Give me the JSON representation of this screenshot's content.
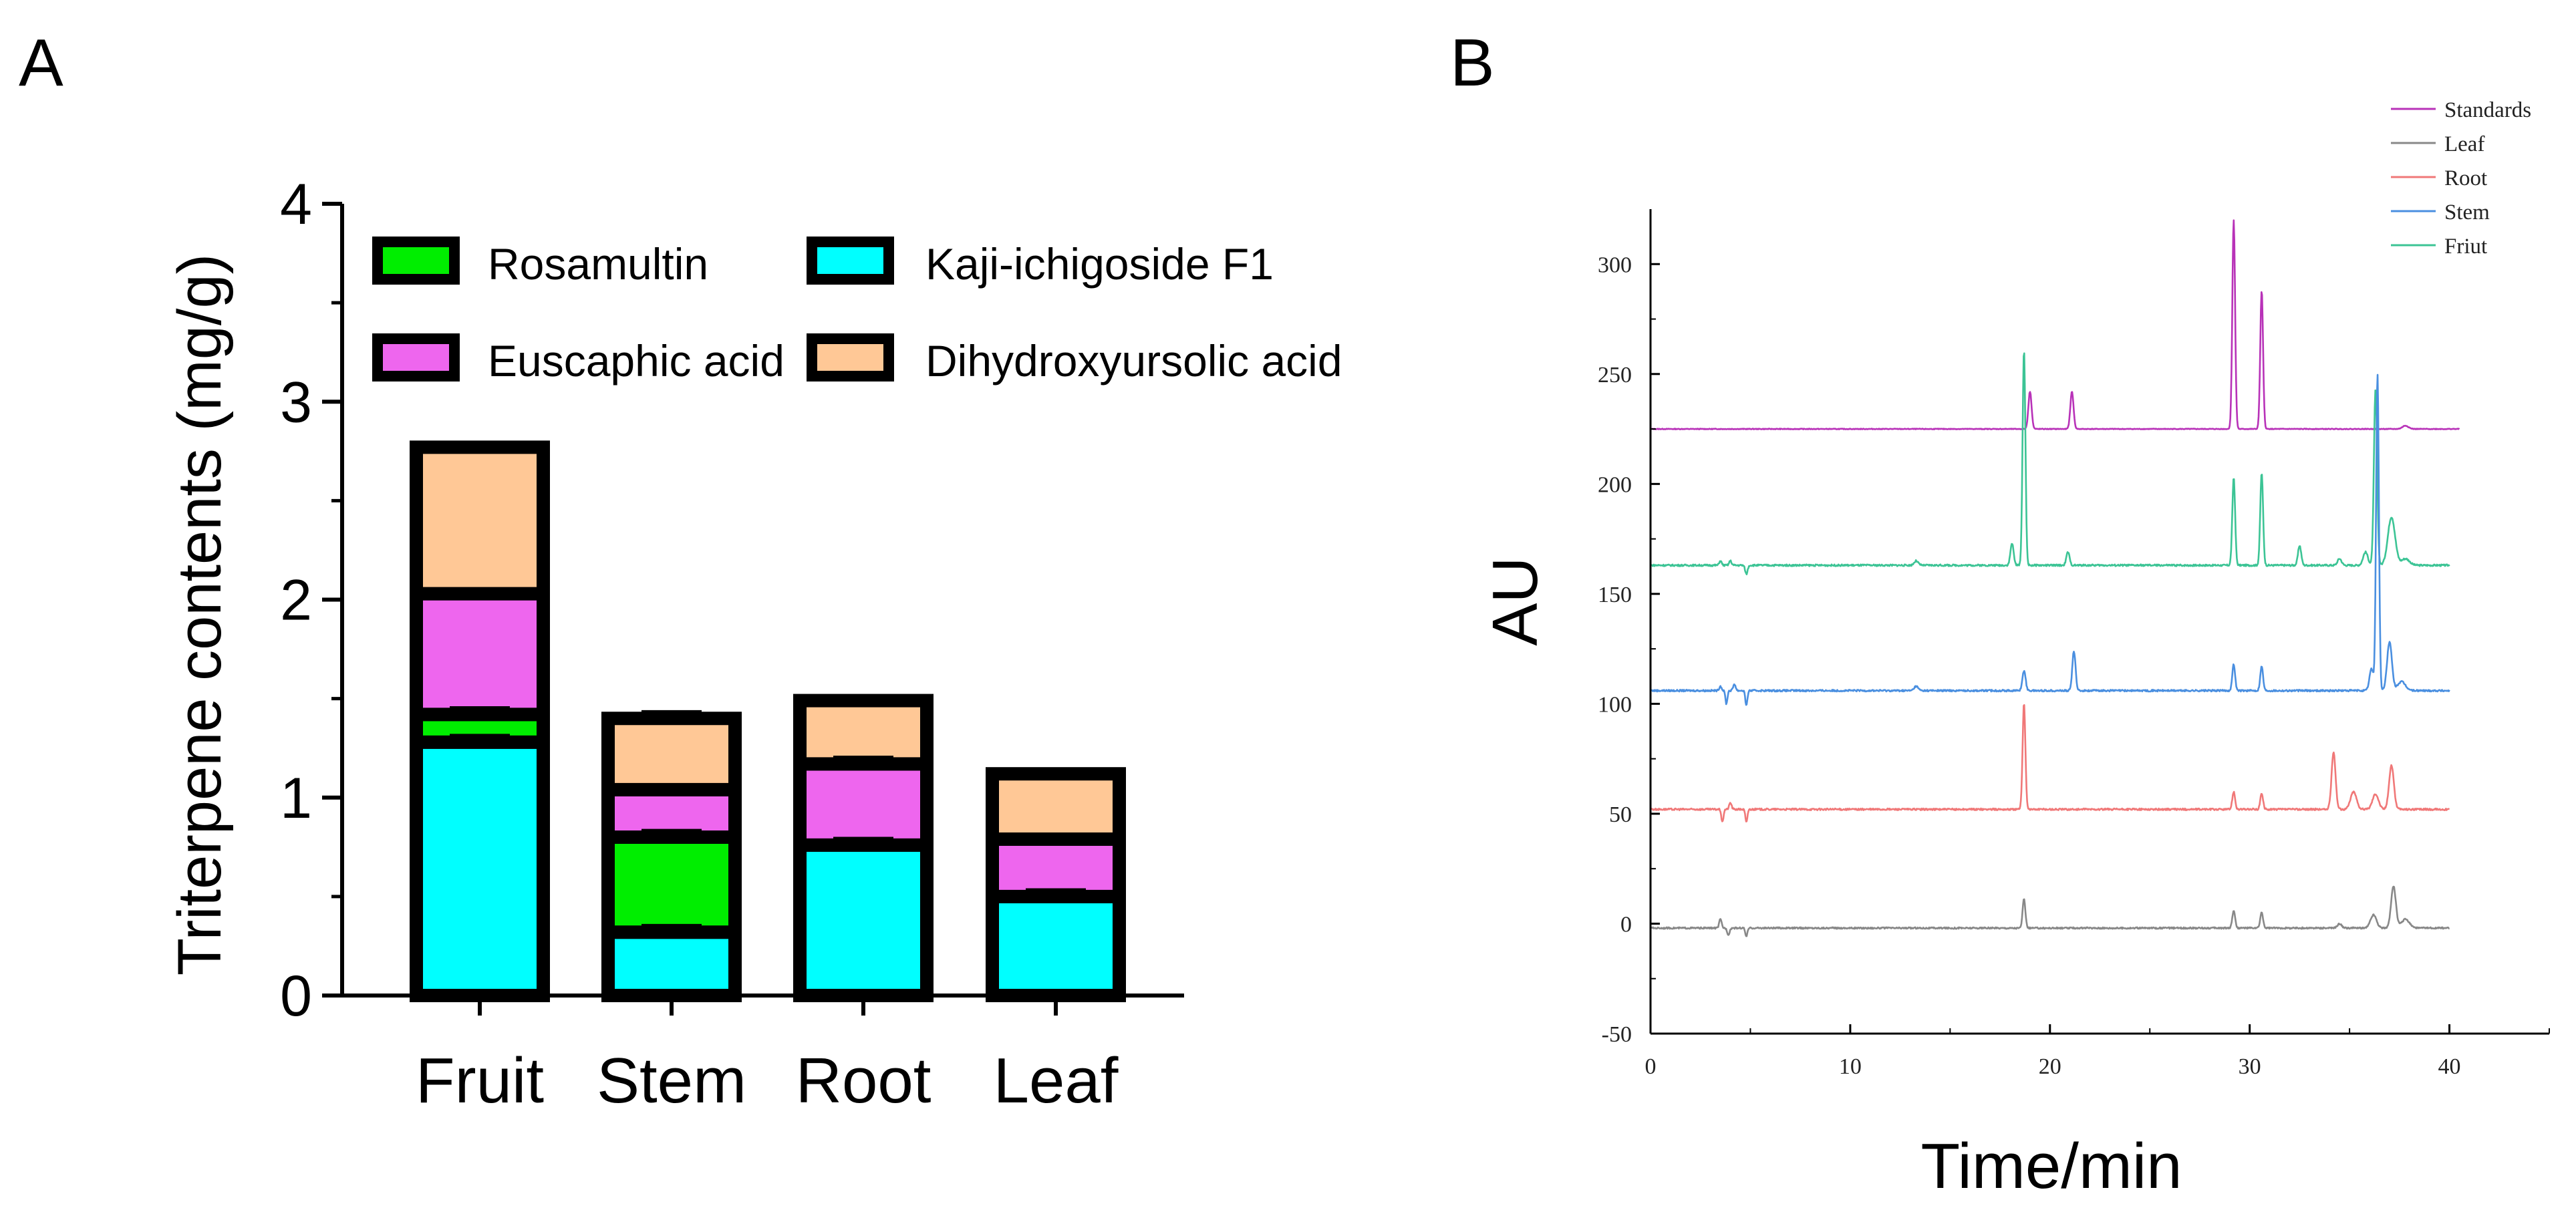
{
  "panel_a_label": "A",
  "panel_b_label": "B",
  "colors": {
    "kaji": "#00ffff",
    "rosamultin": "#00ee00",
    "euscaphic": "#ee66ee",
    "dihydroxy": "#ffc896",
    "outline": "#000000",
    "standards": "#b832b8",
    "leaf": "#888888",
    "root": "#f07878",
    "stem": "#4a8fe0",
    "fruit": "#3cc495"
  },
  "chart_data": [
    {
      "type": "bar",
      "stacked": true,
      "ylabel": "Triterpene contents (mg/g)",
      "ylim": [
        0,
        4
      ],
      "yticks": [
        "0",
        "1",
        "2",
        "3",
        "4"
      ],
      "categories": [
        "Fruit",
        "Stem",
        "Root",
        "Leaf"
      ],
      "series": [
        {
          "name": "Kaji-ichigoside F1",
          "color_key": "kaji",
          "values": [
            1.28,
            0.32,
            0.76,
            0.5
          ],
          "errors": [
            0.03,
            0.03,
            0.03,
            0.03
          ]
        },
        {
          "name": "Rosamultin",
          "color_key": "rosamultin",
          "values": [
            0.14,
            0.48,
            0.0,
            0.0
          ],
          "errors": [
            0.03,
            0.03,
            0.0,
            0.0
          ]
        },
        {
          "name": "Euscaphic acid",
          "color_key": "euscaphic",
          "values": [
            0.61,
            0.24,
            0.41,
            0.29
          ],
          "errors": [
            0.02,
            0.02,
            0.03,
            0.02
          ]
        },
        {
          "name": "Dihydroxyursolic acid",
          "color_key": "dihydroxy",
          "values": [
            0.74,
            0.36,
            0.32,
            0.33
          ],
          "errors": [
            0.02,
            0.03,
            0.02,
            0.01
          ]
        }
      ],
      "legend_order": [
        "Rosamultin",
        "Kaji-ichigoside F1",
        "Euscaphic acid",
        "Dihydroxyursolic acid"
      ]
    },
    {
      "type": "line",
      "xlabel": "Time/min",
      "ylabel": "AU",
      "xlim": [
        0,
        45
      ],
      "ylim": [
        -50,
        325
      ],
      "xticks": [
        "0",
        "10",
        "20",
        "30",
        "40"
      ],
      "yticks": [
        "-50",
        "0",
        "50",
        "100",
        "150",
        "200",
        "250",
        "300"
      ],
      "legend": [
        "Standards",
        "Leaf",
        "Root",
        "Stem",
        "Friut"
      ],
      "series": [
        {
          "name": "Standards",
          "color_key": "standards",
          "baseline": 225,
          "end_x": 40.5,
          "noise": 0.3,
          "peaks": [
            [
              19.0,
              17,
              0.08
            ],
            [
              21.1,
              17,
              0.08
            ],
            [
              29.2,
              95,
              0.07
            ],
            [
              30.6,
              63,
              0.07
            ],
            [
              37.8,
              1.5,
              0.15
            ]
          ]
        },
        {
          "name": "Friut",
          "color_key": "fruit",
          "baseline": 163,
          "end_x": 40.0,
          "noise": 0.8,
          "peaks": [
            [
              3.5,
              2,
              0.06
            ],
            [
              4.0,
              2,
              0.06
            ],
            [
              4.8,
              -4,
              0.06
            ],
            [
              13.3,
              2,
              0.1
            ],
            [
              18.1,
              10,
              0.08
            ],
            [
              18.7,
              98,
              0.07
            ],
            [
              20.9,
              6,
              0.08
            ],
            [
              29.2,
              40,
              0.07
            ],
            [
              30.6,
              42,
              0.07
            ],
            [
              32.5,
              9,
              0.08
            ],
            [
              34.5,
              3,
              0.1
            ],
            [
              35.8,
              6,
              0.12
            ],
            [
              36.3,
              80,
              0.08
            ],
            [
              37.1,
              22,
              0.18
            ],
            [
              37.8,
              3,
              0.2
            ]
          ]
        },
        {
          "name": "Stem",
          "color_key": "stem",
          "baseline": 106,
          "end_x": 40.0,
          "noise": 0.8,
          "peaks": [
            [
              3.5,
              2,
              0.06
            ],
            [
              3.8,
              -6,
              0.05
            ],
            [
              4.2,
              3,
              0.06
            ],
            [
              4.8,
              -7,
              0.05
            ],
            [
              13.3,
              2,
              0.1
            ],
            [
              18.7,
              9,
              0.08
            ],
            [
              21.2,
              18,
              0.08
            ],
            [
              29.2,
              12,
              0.07
            ],
            [
              30.6,
              11,
              0.07
            ],
            [
              36.1,
              10,
              0.1
            ],
            [
              36.4,
              144,
              0.07
            ],
            [
              37.0,
              22,
              0.12
            ],
            [
              37.6,
              4,
              0.2
            ]
          ]
        },
        {
          "name": "Root",
          "color_key": "root",
          "baseline": 52,
          "end_x": 40.0,
          "noise": 0.8,
          "peaks": [
            [
              3.6,
              -6,
              0.05
            ],
            [
              4.0,
              3,
              0.06
            ],
            [
              4.8,
              -6,
              0.05
            ],
            [
              18.7,
              48,
              0.07
            ],
            [
              29.2,
              8,
              0.07
            ],
            [
              30.6,
              7,
              0.07
            ],
            [
              34.2,
              26,
              0.1
            ],
            [
              35.2,
              8,
              0.15
            ],
            [
              36.3,
              7,
              0.15
            ],
            [
              37.1,
              20,
              0.12
            ]
          ]
        },
        {
          "name": "Leaf",
          "color_key": "leaf",
          "baseline": -2,
          "end_x": 40.0,
          "noise": 0.7,
          "peaks": [
            [
              3.5,
              4,
              0.06
            ],
            [
              3.9,
              -3,
              0.06
            ],
            [
              4.8,
              -4,
              0.05
            ],
            [
              18.7,
              13,
              0.07
            ],
            [
              29.2,
              8,
              0.07
            ],
            [
              30.6,
              7,
              0.07
            ],
            [
              34.5,
              2,
              0.1
            ],
            [
              36.2,
              6,
              0.15
            ],
            [
              37.2,
              19,
              0.12
            ],
            [
              37.8,
              4,
              0.2
            ]
          ]
        }
      ]
    }
  ]
}
